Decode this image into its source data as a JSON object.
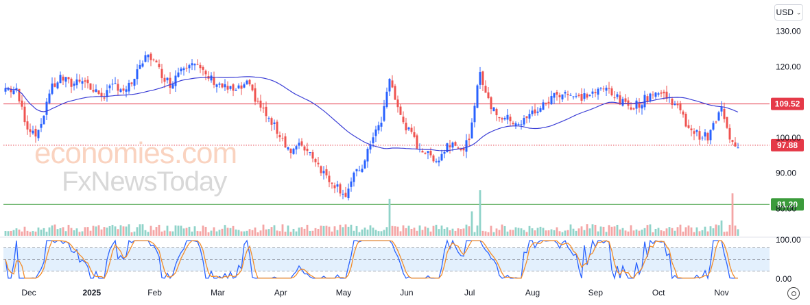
{
  "toolbar": {
    "currency": "USD"
  },
  "chart_data": {
    "type": "candlestick",
    "price_axis": {
      "ticks": [
        "130.00",
        "120.00",
        "100.00",
        "90.00",
        "80.00"
      ],
      "ylim": [
        77,
        133
      ]
    },
    "oscillator_axis": {
      "ticks": [
        "100.00",
        "0.00"
      ],
      "ylim": [
        0,
        100
      ],
      "band": [
        20,
        80
      ],
      "midline": 50
    },
    "time_labels": [
      "Dec",
      "2025",
      "Feb",
      "Mar",
      "Apr",
      "May",
      "Jun",
      "Jul",
      "Aug",
      "Sep",
      "Oct",
      "Nov"
    ],
    "price_levels": [
      {
        "label": "109.52",
        "value": 109.52,
        "color": "#e53948",
        "style": "solid"
      },
      {
        "label": "97.88",
        "value": 97.88,
        "color": "#e53948",
        "style": "dotted"
      },
      {
        "label": "81.20",
        "value": 81.2,
        "color": "#3b9b3b",
        "style": "solid"
      }
    ],
    "ohlc_anchor_closes": [
      [
        0,
        114
      ],
      [
        4,
        113
      ],
      [
        8,
        103
      ],
      [
        12,
        101
      ],
      [
        16,
        113
      ],
      [
        20,
        117
      ],
      [
        24,
        115
      ],
      [
        28,
        117
      ],
      [
        32,
        113
      ],
      [
        36,
        112
      ],
      [
        40,
        115
      ],
      [
        44,
        113
      ],
      [
        48,
        118
      ],
      [
        52,
        124
      ],
      [
        56,
        119
      ],
      [
        60,
        115
      ],
      [
        64,
        120
      ],
      [
        68,
        122
      ],
      [
        72,
        118
      ],
      [
        76,
        116
      ],
      [
        80,
        114
      ],
      [
        84,
        113
      ],
      [
        88,
        115
      ],
      [
        92,
        110
      ],
      [
        96,
        105
      ],
      [
        100,
        101
      ],
      [
        104,
        96
      ],
      [
        108,
        98
      ],
      [
        112,
        95
      ],
      [
        116,
        90
      ],
      [
        120,
        87
      ],
      [
        124,
        84
      ],
      [
        127,
        89
      ],
      [
        131,
        93
      ],
      [
        134,
        101
      ],
      [
        137,
        104
      ],
      [
        140,
        117
      ],
      [
        143,
        108
      ],
      [
        146,
        103
      ],
      [
        150,
        98
      ],
      [
        154,
        95
      ],
      [
        158,
        94
      ],
      [
        161,
        98
      ],
      [
        164,
        99
      ],
      [
        167,
        96
      ],
      [
        170,
        103
      ],
      [
        173,
        119
      ],
      [
        176,
        110
      ],
      [
        180,
        106
      ],
      [
        184,
        105
      ],
      [
        188,
        104
      ],
      [
        192,
        107
      ],
      [
        196,
        109
      ],
      [
        200,
        112
      ],
      [
        204,
        113
      ],
      [
        208,
        111
      ],
      [
        212,
        112
      ],
      [
        216,
        113
      ],
      [
        220,
        114
      ],
      [
        224,
        110
      ],
      [
        228,
        109
      ],
      [
        232,
        110
      ],
      [
        236,
        113
      ],
      [
        240,
        112
      ],
      [
        244,
        110
      ],
      [
        248,
        104
      ],
      [
        252,
        101
      ],
      [
        256,
        100
      ],
      [
        259,
        105
      ],
      [
        261,
        108
      ],
      [
        263,
        102
      ],
      [
        265,
        99
      ],
      [
        267,
        97.88
      ]
    ],
    "moving_average_color": "#3c3fd6",
    "oscillator_lines": [
      {
        "color": "#2962ff"
      },
      {
        "color": "#f28c28"
      }
    ],
    "colors": {
      "up": "#2962ff",
      "down": "#ef5350",
      "volume_up": "#8fd3c9",
      "volume_down": "#f4a5a5",
      "band": "#e3f0fd"
    }
  },
  "watermark": {
    "line1": "economies.com",
    "line2": "FxNewsToday"
  }
}
